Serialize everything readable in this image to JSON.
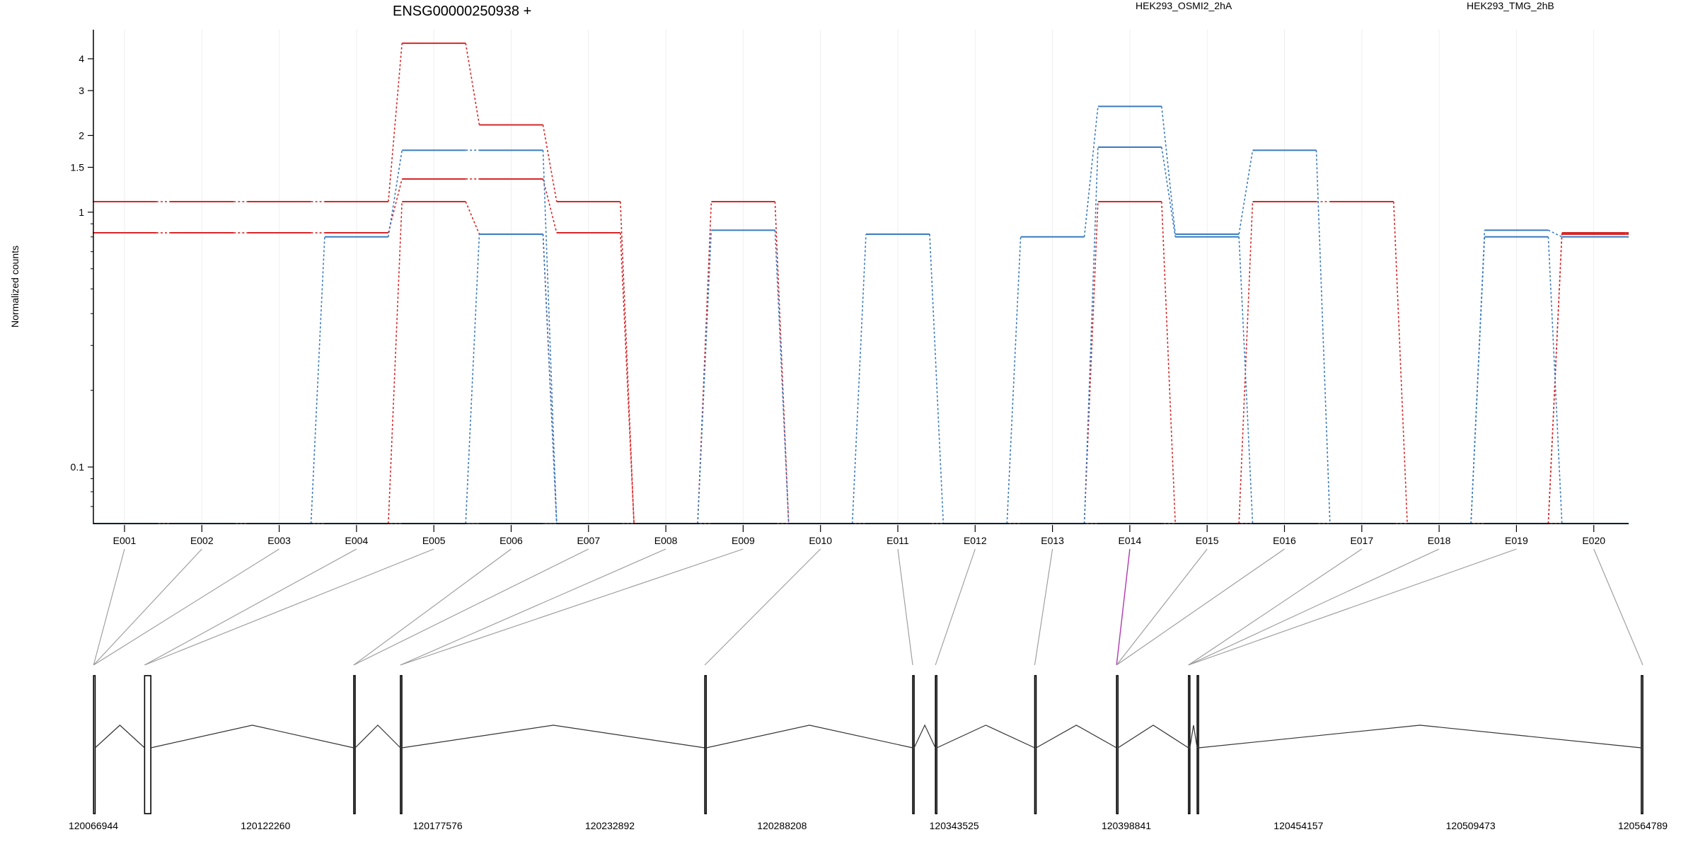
{
  "chart_data": {
    "type": "line",
    "title": "ENSG00000250938 +",
    "ylabel": "Normalized counts",
    "xlabel": "",
    "y_scale": "log",
    "ylim": [
      0.06,
      5.2
    ],
    "yticks": [
      {
        "value": 0.1,
        "label": "0.1"
      },
      {
        "value": 1,
        "label": "1"
      },
      {
        "value": 1.5,
        "label": "1.5"
      },
      {
        "value": 2,
        "label": "2"
      },
      {
        "value": 3,
        "label": "3"
      },
      {
        "value": 4,
        "label": "4"
      }
    ],
    "categories": [
      "E001",
      "E002",
      "E003",
      "E004",
      "E005",
      "E006",
      "E007",
      "E008",
      "E009",
      "E010",
      "E011",
      "E012",
      "E013",
      "E014",
      "E015",
      "E016",
      "E017",
      "E018",
      "E019",
      "E020"
    ],
    "legend": [
      {
        "label": "HEK293_OSMI2_2hA",
        "color": "#d62728"
      },
      {
        "label": "HEK293_TMG_2hB",
        "color": "#3a7bbf"
      }
    ],
    "series": [
      {
        "name": "HEK293_OSMI2_2hA",
        "color": "#d62728",
        "values": [
          1.1,
          1.1,
          1.1,
          1.1,
          4.6,
          2.2,
          1.1,
          0.06,
          1.1,
          0.06,
          0.06,
          0.06,
          0.06,
          1.1,
          0.06,
          1.1,
          1.1,
          0.06,
          0.06,
          0.83
        ]
      },
      {
        "color": "#d62728",
        "values": [
          0.83,
          0.83,
          0.83,
          0.83,
          1.35,
          1.35,
          0.83,
          0.06,
          0.06,
          0.06,
          0.06,
          0.06,
          0.06,
          0.06,
          0.06,
          0.06,
          0.06,
          0.06,
          0.06,
          0.82
        ]
      },
      {
        "color": "#d62728",
        "values": [
          0.06,
          0.06,
          0.06,
          0.06,
          1.1,
          0.82,
          0.06,
          0.06,
          0.06,
          0.06,
          0.06,
          0.06,
          0.06,
          0.06,
          0.06,
          0.06,
          0.06,
          0.06,
          0.06,
          0.06
        ]
      },
      {
        "name": "HEK293_TMG_2hB",
        "color": "#3a7bbf",
        "values": [
          0.06,
          0.06,
          0.06,
          0.8,
          1.75,
          1.75,
          0.06,
          0.06,
          0.85,
          0.06,
          0.82,
          0.06,
          0.8,
          2.6,
          0.82,
          1.75,
          0.06,
          0.06,
          0.85,
          0.8
        ]
      },
      {
        "color": "#3a7bbf",
        "values": [
          0.06,
          0.06,
          0.06,
          0.06,
          0.06,
          0.82,
          0.06,
          0.06,
          0.06,
          0.06,
          0.06,
          0.06,
          0.06,
          1.8,
          0.8,
          0.06,
          0.06,
          0.06,
          0.8,
          0.06
        ]
      },
      {
        "color": "#3a7bbf",
        "values": [
          0.06,
          0.06,
          0.06,
          0.06,
          0.06,
          0.06,
          0.06,
          0.06,
          0.06,
          0.06,
          0.06,
          0.06,
          0.06,
          0.06,
          0.06,
          0.06,
          0.06,
          0.06,
          0.06,
          0.06
        ]
      }
    ],
    "genomic_coordinates": [
      "120066944",
      "120122260",
      "120177576",
      "120232892",
      "120288208",
      "120343525",
      "120398841",
      "120454157",
      "120509473",
      "120564789"
    ],
    "coord_range": [
      120066944,
      120564789
    ],
    "exons": [
      {
        "start": 120067000,
        "end": 120067500
      },
      {
        "start": 120083400,
        "end": 120085400
      },
      {
        "start": 120150600,
        "end": 120151000
      },
      {
        "start": 120165600,
        "end": 120166000
      },
      {
        "start": 120263400,
        "end": 120263800
      },
      {
        "start": 120330200,
        "end": 120330600
      },
      {
        "start": 120337500,
        "end": 120337900
      },
      {
        "start": 120369400,
        "end": 120369800
      },
      {
        "start": 120395700,
        "end": 120396100
      },
      {
        "start": 120418800,
        "end": 120419200
      },
      {
        "start": 120421600,
        "end": 120422000
      },
      {
        "start": 120564300,
        "end": 120564789
      }
    ],
    "exon_to_bin": [
      0,
      0,
      0,
      1,
      1,
      2,
      2,
      3,
      3,
      4,
      5,
      6,
      7,
      8,
      8,
      8,
      9,
      9,
      9,
      11
    ],
    "highlight_exon": "E014",
    "highlight_color": "#b03ab0"
  }
}
